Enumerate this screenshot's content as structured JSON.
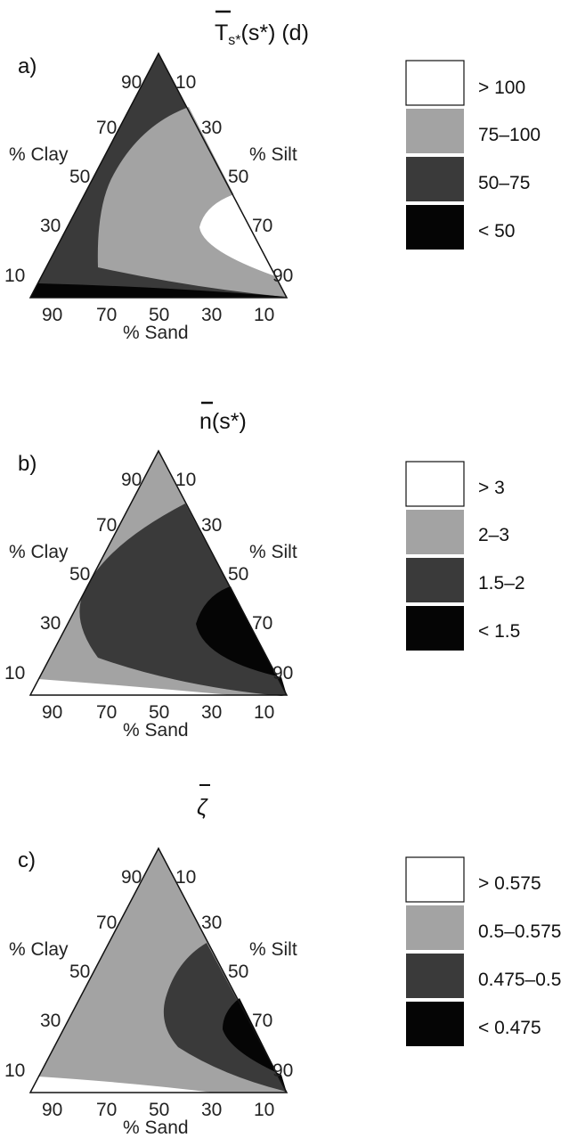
{
  "chart_data": [
    {
      "type": "ternary-contour",
      "panel_label": "a)",
      "title": "Ts*(s*) (d)",
      "title_main": "T",
      "title_sub": "s*",
      "title_rest": "(s*) (d)",
      "axes": {
        "left": "% Clay",
        "right": "% Silt",
        "bottom": "% Sand"
      },
      "left_ticks": [
        "90",
        "70",
        "50",
        "30",
        "10"
      ],
      "right_ticks": [
        "10",
        "30",
        "50",
        "70",
        "90"
      ],
      "bottom_ticks": [
        "90",
        "70",
        "50",
        "30",
        "10"
      ],
      "legend": [
        {
          "label": "> 100",
          "color": "#ffffff"
        },
        {
          "label": "75–100",
          "color": "#a3a3a3"
        },
        {
          "label": "50–75",
          "color": "#3a3a3a"
        },
        {
          "label": "< 50",
          "color": "#050505"
        }
      ]
    },
    {
      "type": "ternary-contour",
      "panel_label": "b)",
      "title": "n(s*)",
      "title_main": "n",
      "title_rest": "(s*)",
      "axes": {
        "left": "% Clay",
        "right": "% Silt",
        "bottom": "% Sand"
      },
      "left_ticks": [
        "90",
        "70",
        "50",
        "30",
        "10"
      ],
      "right_ticks": [
        "10",
        "30",
        "50",
        "70",
        "90"
      ],
      "bottom_ticks": [
        "90",
        "70",
        "50",
        "30",
        "10"
      ],
      "legend": [
        {
          "label": "> 3",
          "color": "#ffffff"
        },
        {
          "label": "2–3",
          "color": "#a3a3a3"
        },
        {
          "label": "1.5–2",
          "color": "#3a3a3a"
        },
        {
          "label": "< 1.5",
          "color": "#050505"
        }
      ]
    },
    {
      "type": "ternary-contour",
      "panel_label": "c)",
      "title": "ζ",
      "title_main": "ζ",
      "axes": {
        "left": "% Clay",
        "right": "% Silt",
        "bottom": "% Sand"
      },
      "left_ticks": [
        "90",
        "70",
        "50",
        "30",
        "10"
      ],
      "right_ticks": [
        "10",
        "30",
        "50",
        "70",
        "90"
      ],
      "bottom_ticks": [
        "90",
        "70",
        "50",
        "30",
        "10"
      ],
      "legend": [
        {
          "label": "> 0.575",
          "color": "#ffffff"
        },
        {
          "label": "0.5–0.575",
          "color": "#a3a3a3"
        },
        {
          "label": "0.475–0.5",
          "color": "#3a3a3a"
        },
        {
          "label": "< 0.475",
          "color": "#050505"
        }
      ]
    }
  ]
}
